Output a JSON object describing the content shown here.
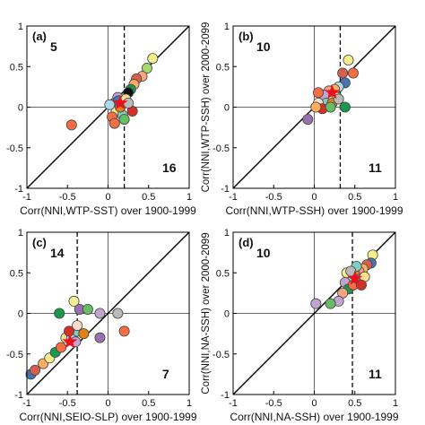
{
  "colors": {
    "star": "#e8121b",
    "frame": "#000000",
    "marker_edge": "#444444"
  },
  "chart_data": [
    {
      "type": "scatter",
      "panel_label": "(a)",
      "xlabel": "Corr(NNI,WTP-SST) over 1900-1999",
      "ylabel": "",
      "xlim": [
        -1,
        1
      ],
      "ylim": [
        -1,
        1
      ],
      "xticks": [
        "-1",
        "-0.5",
        "0",
        "0.5",
        "1"
      ],
      "yticks": [
        "-1",
        "-0.5",
        "0",
        "0.5",
        "1"
      ],
      "vline_dashed": 0.2,
      "count_upper_left": "5",
      "count_lower_right": "16",
      "star": [
        0.15,
        0.05
      ],
      "points": [
        {
          "x": 0.55,
          "y": 0.6,
          "c": "#f6ee8c"
        },
        {
          "x": 0.48,
          "y": 0.48,
          "c": "#a6d96a"
        },
        {
          "x": 0.42,
          "y": 0.38,
          "c": "#f4a582"
        },
        {
          "x": 0.35,
          "y": 0.35,
          "c": "#d6604d"
        },
        {
          "x": 0.32,
          "y": 0.28,
          "c": "#fdae61"
        },
        {
          "x": 0.28,
          "y": 0.22,
          "c": "#1a9850"
        },
        {
          "x": 0.25,
          "y": 0.18,
          "c": "#111111"
        },
        {
          "x": 0.12,
          "y": 0.12,
          "c": "#c2a5cf"
        },
        {
          "x": 0.08,
          "y": 0.05,
          "c": "#9970ab"
        },
        {
          "x": 0.1,
          "y": -0.05,
          "c": "#f6ee8c"
        },
        {
          "x": 0.18,
          "y": -0.1,
          "c": "#80cdc1"
        },
        {
          "x": 0.05,
          "y": -0.12,
          "c": "#f46d43"
        },
        {
          "x": 0.2,
          "y": -0.15,
          "c": "#66bd63"
        },
        {
          "x": 0.15,
          "y": 0.0,
          "c": "#e08214"
        },
        {
          "x": 0.13,
          "y": 0.08,
          "c": "#4575b4"
        },
        {
          "x": 0.22,
          "y": 0.1,
          "c": "#fee08b"
        },
        {
          "x": 0.02,
          "y": 0.03,
          "c": "#abd9e9"
        },
        {
          "x": 0.08,
          "y": -0.2,
          "c": "#f46d43"
        },
        {
          "x": 0.3,
          "y": -0.05,
          "c": "#d73027"
        },
        {
          "x": -0.45,
          "y": -0.22,
          "c": "#f46d43"
        },
        {
          "x": 0.25,
          "y": 0.05,
          "c": "#bababa"
        }
      ]
    },
    {
      "type": "scatter",
      "panel_label": "(b)",
      "xlabel": "Corr(NNI,WTP-SSH) over 1900-1999",
      "ylabel": "Corr(NNI,WTP-SSH) over 2000-2099",
      "xlim": [
        -1,
        1
      ],
      "ylim": [
        -1,
        1
      ],
      "xticks": [
        "-1",
        "-0.5",
        "0",
        "0.5",
        "1"
      ],
      "yticks": [
        "-1",
        "-0.5",
        "0",
        "0.5",
        "1"
      ],
      "vline_dashed": 0.32,
      "count_upper_left": "10",
      "count_lower_right": "11",
      "star": [
        0.22,
        0.18
      ],
      "points": [
        {
          "x": 0.42,
          "y": 0.58,
          "c": "#f6ee8c"
        },
        {
          "x": 0.35,
          "y": 0.42,
          "c": "#d6604d"
        },
        {
          "x": 0.48,
          "y": 0.42,
          "c": "#f46d43"
        },
        {
          "x": 0.38,
          "y": 0.3,
          "c": "#4575b4"
        },
        {
          "x": 0.3,
          "y": 0.25,
          "c": "#abd9e9"
        },
        {
          "x": 0.25,
          "y": 0.22,
          "c": "#fdae61"
        },
        {
          "x": 0.18,
          "y": 0.2,
          "c": "#f4a582"
        },
        {
          "x": 0.12,
          "y": 0.15,
          "c": "#c2a5cf"
        },
        {
          "x": 0.28,
          "y": 0.12,
          "c": "#fee08b"
        },
        {
          "x": 0.05,
          "y": 0.18,
          "c": "#f46d43"
        },
        {
          "x": 0.15,
          "y": 0.05,
          "c": "#80cdc1"
        },
        {
          "x": 0.22,
          "y": 0.05,
          "c": "#e08214"
        },
        {
          "x": 0.05,
          "y": 0.05,
          "c": "#fddbc7"
        },
        {
          "x": 0.1,
          "y": -0.02,
          "c": "#d73027"
        },
        {
          "x": -0.08,
          "y": -0.15,
          "c": "#9970ab"
        },
        {
          "x": 0.38,
          "y": 0.0,
          "c": "#1a9850"
        },
        {
          "x": 0.2,
          "y": 0.0,
          "c": "#66bd63"
        },
        {
          "x": 0.3,
          "y": 0.1,
          "c": "#bababa"
        },
        {
          "x": 0.02,
          "y": 0.0,
          "c": "#fdae61"
        }
      ]
    },
    {
      "type": "scatter",
      "panel_label": "(c)",
      "xlabel": "Corr(NNI,SEIO-SLP) over 1900-1999",
      "ylabel": "",
      "xlim": [
        -1,
        1
      ],
      "ylim": [
        -1,
        1
      ],
      "xticks": [
        "-1",
        "-0.5",
        "0",
        "0.5",
        "1"
      ],
      "yticks": [
        "-1",
        "-0.5",
        "0",
        "0.5",
        "1"
      ],
      "vline_dashed": -0.38,
      "count_upper_left": "14",
      "count_lower_right": "7",
      "star": [
        -0.47,
        -0.35
      ],
      "points": [
        {
          "x": -0.95,
          "y": -0.75,
          "c": "#4575b4"
        },
        {
          "x": -0.9,
          "y": -0.7,
          "c": "#d6604d"
        },
        {
          "x": -0.8,
          "y": -0.62,
          "c": "#fdae61"
        },
        {
          "x": -0.72,
          "y": -0.55,
          "c": "#f6ee8c"
        },
        {
          "x": -0.65,
          "y": -0.48,
          "c": "#1a9850"
        },
        {
          "x": -0.58,
          "y": -0.42,
          "c": "#f46d43"
        },
        {
          "x": -0.52,
          "y": -0.3,
          "c": "#fee08b"
        },
        {
          "x": -0.45,
          "y": -0.3,
          "c": "#abd9e9"
        },
        {
          "x": -0.4,
          "y": -0.35,
          "c": "#c2a5cf"
        },
        {
          "x": -0.38,
          "y": -0.22,
          "c": "#80cdc1"
        },
        {
          "x": -0.3,
          "y": -0.25,
          "c": "#e08214"
        },
        {
          "x": -0.48,
          "y": -0.22,
          "c": "#d73027"
        },
        {
          "x": -0.35,
          "y": 0.05,
          "c": "#9970ab"
        },
        {
          "x": -0.25,
          "y": 0.05,
          "c": "#66bd63"
        },
        {
          "x": -0.42,
          "y": 0.15,
          "c": "#f6ee8c"
        },
        {
          "x": -0.6,
          "y": 0.0,
          "c": "#1a9850"
        },
        {
          "x": -0.1,
          "y": 0.0,
          "c": "#c2a5cf"
        },
        {
          "x": 0.12,
          "y": 0.0,
          "c": "#bababa"
        },
        {
          "x": 0.2,
          "y": -0.22,
          "c": "#f46d43"
        },
        {
          "x": -0.1,
          "y": -0.3,
          "c": "#9970ab"
        },
        {
          "x": -0.38,
          "y": -0.15,
          "c": "#fddbc7"
        }
      ]
    },
    {
      "type": "scatter",
      "panel_label": "(d)",
      "xlabel": "Corr(NNI,NA-SSH) over 1900-1999",
      "ylabel": "Corr(NNI,NA-SSH) over 2000-2099",
      "xlim": [
        -1,
        1
      ],
      "ylim": [
        -1,
        1
      ],
      "xticks": [
        "-1",
        "-0.5",
        "0",
        "0.5",
        "1"
      ],
      "yticks": [
        "-1",
        "-0.5",
        "0",
        "0.5",
        "1"
      ],
      "vline_dashed": 0.47,
      "count_upper_left": "10",
      "count_lower_right": "11",
      "star": [
        0.5,
        0.43
      ],
      "points": [
        {
          "x": 0.72,
          "y": 0.72,
          "c": "#f6ee8c"
        },
        {
          "x": 0.7,
          "y": 0.62,
          "c": "#4575b4"
        },
        {
          "x": 0.65,
          "y": 0.6,
          "c": "#d6604d"
        },
        {
          "x": 0.6,
          "y": 0.55,
          "c": "#fdae61"
        },
        {
          "x": 0.55,
          "y": 0.52,
          "c": "#f4a582"
        },
        {
          "x": 0.5,
          "y": 0.48,
          "c": "#e08214"
        },
        {
          "x": 0.45,
          "y": 0.45,
          "c": "#abd9e9"
        },
        {
          "x": 0.4,
          "y": 0.5,
          "c": "#f6ee8c"
        },
        {
          "x": 0.38,
          "y": 0.38,
          "c": "#c2a5cf"
        },
        {
          "x": 0.42,
          "y": 0.3,
          "c": "#1a9850"
        },
        {
          "x": 0.48,
          "y": 0.35,
          "c": "#f46d43"
        },
        {
          "x": 0.55,
          "y": 0.42,
          "c": "#9970ab"
        },
        {
          "x": 0.35,
          "y": 0.25,
          "c": "#f4a582"
        },
        {
          "x": 0.3,
          "y": 0.15,
          "c": "#c2a5cf"
        },
        {
          "x": 0.62,
          "y": 0.45,
          "c": "#fee08b"
        },
        {
          "x": 0.58,
          "y": 0.35,
          "c": "#d73027"
        },
        {
          "x": 0.2,
          "y": 0.12,
          "c": "#66bd63"
        },
        {
          "x": 0.02,
          "y": 0.12,
          "c": "#c2a5cf"
        },
        {
          "x": 0.52,
          "y": 0.58,
          "c": "#80cdc1"
        },
        {
          "x": 0.45,
          "y": 0.52,
          "c": "#bababa"
        }
      ]
    }
  ]
}
